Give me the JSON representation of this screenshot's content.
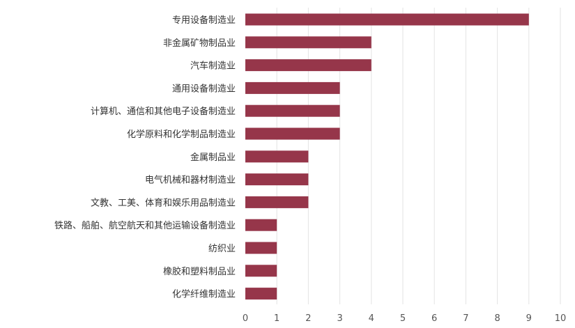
{
  "chart_data": {
    "type": "bar",
    "orientation": "horizontal",
    "title": "",
    "xlabel": "",
    "ylabel": "",
    "categories": [
      "专用设备制造业",
      "非金属矿物制品业",
      "汽车制造业",
      "通用设备制造业",
      "计算机、通信和其他电子设备制造业",
      "化学原料和化学制品制造业",
      "金属制品业",
      "电气机械和器材制造业",
      "文教、工美、体育和娱乐用品制造业",
      "铁路、船舶、航空航天和其他运输设备制造业",
      "纺织业",
      "橡胶和塑料制品业",
      "化学纤维制造业"
    ],
    "values": [
      9,
      4,
      4,
      3,
      3,
      3,
      2,
      2,
      2,
      1,
      1,
      1,
      1
    ],
    "xlim": [
      0,
      10
    ],
    "xticks": [
      "0",
      "1",
      "2",
      "3",
      "4",
      "5",
      "6",
      "7",
      "8",
      "9",
      "10"
    ],
    "grid": "vertical",
    "legend": "none",
    "bar_color": "#96364a",
    "grid_color": "#e3e3e3"
  }
}
